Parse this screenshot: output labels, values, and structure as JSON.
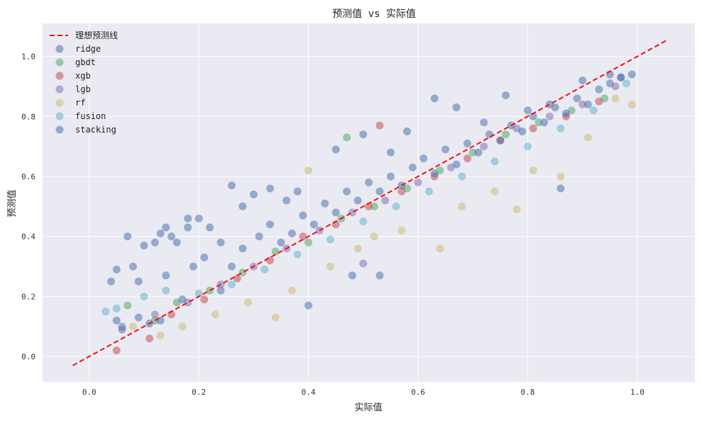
{
  "chart_data": {
    "type": "scatter",
    "title": "预测值 vs 实际值",
    "xlabel": "实际值",
    "ylabel": "预测值",
    "xlim": [
      -0.085,
      1.105
    ],
    "ylim": [
      -0.085,
      1.11
    ],
    "xticks": [
      0.0,
      0.2,
      0.4,
      0.6,
      0.8,
      1.0
    ],
    "xtick_labels": [
      "0.0",
      "0.2",
      "0.4",
      "0.6",
      "0.8",
      "1.0"
    ],
    "yticks": [
      0.0,
      0.2,
      0.4,
      0.6,
      0.8,
      1.0
    ],
    "ytick_labels": [
      "0.0",
      "0.2",
      "0.4",
      "0.6",
      "0.8",
      "1.0"
    ],
    "grid": true,
    "background": "#eaeaf2",
    "legend_position": "top-left",
    "ideal_line": {
      "label": "理想预测线",
      "color": "#ee1111",
      "style": "dashed",
      "x": [
        -0.03,
        1.055
      ],
      "y": [
        -0.03,
        1.055
      ]
    },
    "series": [
      {
        "name": "ridge",
        "color": "#4c72b0",
        "points": [
          [
            0.04,
            0.25
          ],
          [
            0.05,
            0.29
          ],
          [
            0.07,
            0.4
          ],
          [
            0.08,
            0.3
          ],
          [
            0.09,
            0.25
          ],
          [
            0.1,
            0.37
          ],
          [
            0.12,
            0.38
          ],
          [
            0.13,
            0.41
          ],
          [
            0.14,
            0.43
          ],
          [
            0.15,
            0.4
          ],
          [
            0.16,
            0.38
          ],
          [
            0.18,
            0.43
          ],
          [
            0.18,
            0.46
          ],
          [
            0.2,
            0.46
          ],
          [
            0.22,
            0.43
          ],
          [
            0.24,
            0.38
          ],
          [
            0.26,
            0.57
          ],
          [
            0.28,
            0.5
          ],
          [
            0.3,
            0.54
          ],
          [
            0.33,
            0.56
          ],
          [
            0.36,
            0.52
          ],
          [
            0.38,
            0.55
          ],
          [
            0.4,
            0.17
          ],
          [
            0.45,
            0.69
          ],
          [
            0.48,
            0.27
          ],
          [
            0.5,
            0.74
          ],
          [
            0.53,
            0.27
          ],
          [
            0.55,
            0.68
          ],
          [
            0.58,
            0.75
          ],
          [
            0.63,
            0.86
          ],
          [
            0.67,
            0.83
          ],
          [
            0.72,
            0.78
          ],
          [
            0.76,
            0.87
          ],
          [
            0.8,
            0.82
          ],
          [
            0.84,
            0.84
          ],
          [
            0.86,
            0.56
          ],
          [
            0.9,
            0.92
          ],
          [
            0.95,
            0.94
          ],
          [
            0.97,
            0.93
          ]
        ]
      },
      {
        "name": "gbdt",
        "color": "#55a868",
        "points": [
          [
            0.07,
            0.17
          ],
          [
            0.12,
            0.12
          ],
          [
            0.16,
            0.18
          ],
          [
            0.22,
            0.22
          ],
          [
            0.28,
            0.28
          ],
          [
            0.34,
            0.35
          ],
          [
            0.4,
            0.38
          ],
          [
            0.46,
            0.46
          ],
          [
            0.47,
            0.73
          ],
          [
            0.52,
            0.5
          ],
          [
            0.58,
            0.56
          ],
          [
            0.64,
            0.62
          ],
          [
            0.7,
            0.68
          ],
          [
            0.76,
            0.74
          ],
          [
            0.82,
            0.78
          ],
          [
            0.88,
            0.82
          ],
          [
            0.94,
            0.86
          ]
        ]
      },
      {
        "name": "xgb",
        "color": "#c44e52",
        "points": [
          [
            0.05,
            0.02
          ],
          [
            0.11,
            0.06
          ],
          [
            0.15,
            0.14
          ],
          [
            0.21,
            0.19
          ],
          [
            0.27,
            0.26
          ],
          [
            0.33,
            0.32
          ],
          [
            0.39,
            0.4
          ],
          [
            0.45,
            0.44
          ],
          [
            0.51,
            0.5
          ],
          [
            0.53,
            0.77
          ],
          [
            0.57,
            0.55
          ],
          [
            0.63,
            0.6
          ],
          [
            0.69,
            0.66
          ],
          [
            0.75,
            0.72
          ],
          [
            0.81,
            0.76
          ],
          [
            0.87,
            0.8
          ],
          [
            0.93,
            0.85
          ]
        ]
      },
      {
        "name": "lgb",
        "color": "#8172b2",
        "points": [
          [
            0.06,
            0.1
          ],
          [
            0.12,
            0.14
          ],
          [
            0.18,
            0.18
          ],
          [
            0.24,
            0.24
          ],
          [
            0.3,
            0.3
          ],
          [
            0.36,
            0.36
          ],
          [
            0.42,
            0.42
          ],
          [
            0.48,
            0.48
          ],
          [
            0.5,
            0.31
          ],
          [
            0.54,
            0.52
          ],
          [
            0.6,
            0.58
          ],
          [
            0.66,
            0.63
          ],
          [
            0.72,
            0.7
          ],
          [
            0.78,
            0.76
          ],
          [
            0.84,
            0.8
          ],
          [
            0.9,
            0.84
          ],
          [
            0.96,
            0.9
          ]
        ]
      },
      {
        "name": "rf",
        "color": "#ccb974",
        "points": [
          [
            0.08,
            0.1
          ],
          [
            0.13,
            0.07
          ],
          [
            0.17,
            0.1
          ],
          [
            0.23,
            0.14
          ],
          [
            0.29,
            0.18
          ],
          [
            0.34,
            0.13
          ],
          [
            0.37,
            0.22
          ],
          [
            0.4,
            0.62
          ],
          [
            0.44,
            0.3
          ],
          [
            0.49,
            0.36
          ],
          [
            0.52,
            0.4
          ],
          [
            0.57,
            0.42
          ],
          [
            0.64,
            0.36
          ],
          [
            0.68,
            0.5
          ],
          [
            0.74,
            0.55
          ],
          [
            0.78,
            0.49
          ],
          [
            0.81,
            0.62
          ],
          [
            0.86,
            0.6
          ],
          [
            0.91,
            0.73
          ],
          [
            0.96,
            0.86
          ],
          [
            0.99,
            0.84
          ]
        ]
      },
      {
        "name": "fusion",
        "color": "#64b5cd",
        "points": [
          [
            0.03,
            0.15
          ],
          [
            0.05,
            0.16
          ],
          [
            0.1,
            0.2
          ],
          [
            0.14,
            0.22
          ],
          [
            0.2,
            0.21
          ],
          [
            0.26,
            0.24
          ],
          [
            0.32,
            0.29
          ],
          [
            0.38,
            0.34
          ],
          [
            0.44,
            0.39
          ],
          [
            0.5,
            0.45
          ],
          [
            0.56,
            0.5
          ],
          [
            0.62,
            0.55
          ],
          [
            0.68,
            0.6
          ],
          [
            0.74,
            0.65
          ],
          [
            0.8,
            0.7
          ],
          [
            0.86,
            0.76
          ],
          [
            0.92,
            0.82
          ],
          [
            0.98,
            0.91
          ]
        ]
      },
      {
        "name": "stacking",
        "color": "#4c72b0",
        "points": [
          [
            0.05,
            0.12
          ],
          [
            0.06,
            0.09
          ],
          [
            0.09,
            0.13
          ],
          [
            0.11,
            0.11
          ],
          [
            0.13,
            0.12
          ],
          [
            0.14,
            0.27
          ],
          [
            0.17,
            0.19
          ],
          [
            0.19,
            0.3
          ],
          [
            0.21,
            0.33
          ],
          [
            0.24,
            0.22
          ],
          [
            0.26,
            0.3
          ],
          [
            0.28,
            0.36
          ],
          [
            0.31,
            0.4
          ],
          [
            0.33,
            0.44
          ],
          [
            0.35,
            0.38
          ],
          [
            0.37,
            0.41
          ],
          [
            0.39,
            0.47
          ],
          [
            0.41,
            0.44
          ],
          [
            0.43,
            0.51
          ],
          [
            0.45,
            0.48
          ],
          [
            0.47,
            0.55
          ],
          [
            0.49,
            0.52
          ],
          [
            0.51,
            0.58
          ],
          [
            0.53,
            0.55
          ],
          [
            0.55,
            0.6
          ],
          [
            0.57,
            0.57
          ],
          [
            0.59,
            0.63
          ],
          [
            0.61,
            0.66
          ],
          [
            0.63,
            0.61
          ],
          [
            0.65,
            0.69
          ],
          [
            0.67,
            0.64
          ],
          [
            0.69,
            0.71
          ],
          [
            0.71,
            0.68
          ],
          [
            0.73,
            0.74
          ],
          [
            0.75,
            0.72
          ],
          [
            0.77,
            0.77
          ],
          [
            0.79,
            0.75
          ],
          [
            0.81,
            0.8
          ],
          [
            0.83,
            0.78
          ],
          [
            0.85,
            0.83
          ],
          [
            0.87,
            0.81
          ],
          [
            0.89,
            0.86
          ],
          [
            0.91,
            0.84
          ],
          [
            0.93,
            0.89
          ],
          [
            0.95,
            0.91
          ],
          [
            0.97,
            0.93
          ],
          [
            0.99,
            0.94
          ]
        ]
      }
    ]
  }
}
